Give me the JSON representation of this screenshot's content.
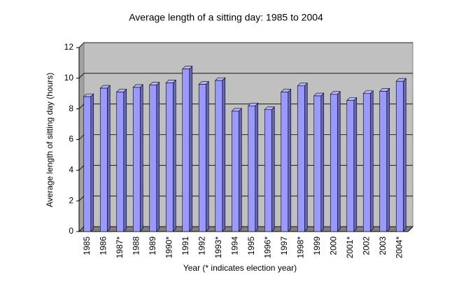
{
  "chart_data": {
    "type": "bar3d",
    "title": "Average length of a sitting day: 1985 to 2004",
    "y_label": "Average length of sitting day (hours)",
    "x_label": "Year (* indicates election year)",
    "categories": [
      "1985",
      "1986",
      "1987*",
      "1988",
      "1989",
      "1990*",
      "1991",
      "1992",
      "1993*",
      "1994",
      "1995",
      "1996*",
      "1997",
      "1998*",
      "1999",
      "2000",
      "2001*",
      "2002",
      "2003",
      "2004*"
    ],
    "values": [
      8.8,
      9.35,
      9.1,
      9.4,
      9.55,
      9.7,
      10.6,
      9.6,
      9.85,
      7.85,
      8.2,
      7.95,
      9.1,
      9.5,
      8.85,
      8.95,
      8.55,
      9.0,
      9.15,
      9.8
    ],
    "color": "#9999ff",
    "ylim": [
      0,
      12
    ],
    "yticks": [
      0,
      2,
      4,
      6,
      8,
      10,
      12
    ],
    "grid": true
  }
}
